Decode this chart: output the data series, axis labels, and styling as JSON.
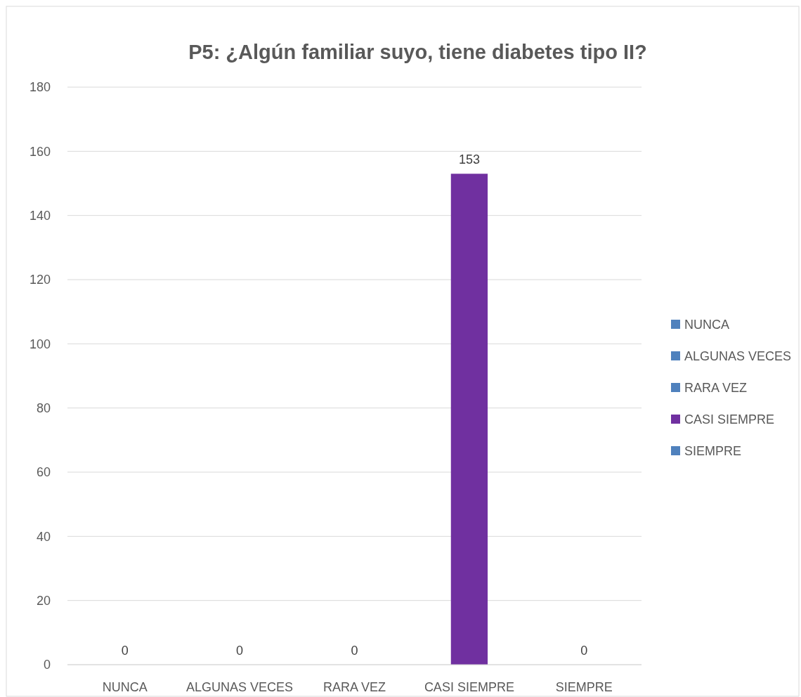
{
  "chart_data": {
    "type": "bar",
    "title": "P5: ¿Algún familiar suyo, tiene diabetes tipo II?",
    "categories": [
      "NUNCA",
      "ALGUNAS VECES",
      "RARA VEZ",
      "CASI SIEMPRE",
      "SIEMPRE"
    ],
    "series": [
      {
        "name": "NUNCA",
        "color": "#4f81bd",
        "values": [
          0,
          null,
          null,
          null,
          null
        ]
      },
      {
        "name": "ALGUNAS VECES",
        "color": "#4f81bd",
        "values": [
          null,
          0,
          null,
          null,
          null
        ]
      },
      {
        "name": "RARA VEZ",
        "color": "#4f81bd",
        "values": [
          null,
          null,
          0,
          null,
          null
        ]
      },
      {
        "name": "CASI SIEMPRE",
        "color": "#7030a0",
        "values": [
          null,
          null,
          null,
          153,
          null
        ]
      },
      {
        "name": "SIEMPRE",
        "color": "#4f81bd",
        "values": [
          null,
          null,
          null,
          null,
          0
        ]
      }
    ],
    "stacked": true,
    "ylim": [
      0,
      180
    ],
    "yticks": [
      0,
      20,
      40,
      60,
      80,
      100,
      120,
      140,
      160,
      180
    ],
    "grid": "y",
    "legend": "right",
    "data_labels": true
  }
}
